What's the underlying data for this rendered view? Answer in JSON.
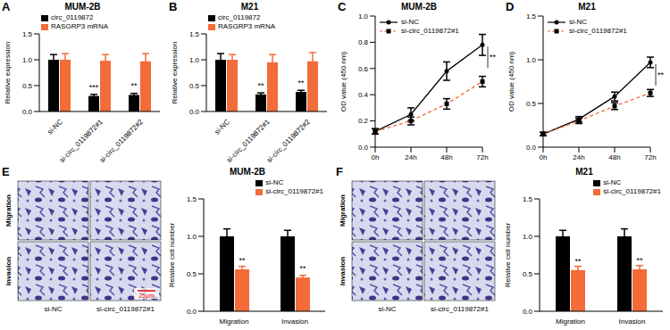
{
  "chart_data": [
    {
      "panel": "A",
      "type": "bar",
      "title": "MUM-2B",
      "y_label": "Relative expression",
      "categories": [
        "si-NC",
        "si-circ_0119872#1",
        "si-circ_0119872#2"
      ],
      "series": [
        {
          "name": "circ_0119872",
          "color": "#000000",
          "values": [
            1.0,
            0.3,
            0.32
          ],
          "errors": [
            0.1,
            0.03,
            0.03
          ],
          "significance": [
            null,
            "***",
            "**"
          ]
        },
        {
          "name": "RASGRP3 mRNA",
          "color": "#f26b38",
          "values": [
            1.0,
            0.98,
            0.97
          ],
          "errors": [
            0.12,
            0.12,
            0.15
          ]
        }
      ],
      "ylim": [
        0,
        1.5
      ],
      "yticks": [
        {
          "value": 0,
          "label": "0.0"
        },
        0.5,
        {
          "value": 1,
          "label": "1.0"
        },
        1.5
      ],
      "legend": "top-left"
    },
    {
      "panel": "B",
      "type": "bar",
      "title": "M21",
      "y_label": "Relative expression",
      "categories": [
        "si-NC",
        "si-circ_0119872#1",
        "si-circ_0119872#2"
      ],
      "series": [
        {
          "name": "circ_0119872",
          "color": "#000000",
          "values": [
            1.0,
            0.33,
            0.38
          ],
          "errors": [
            0.12,
            0.03,
            0.03
          ],
          "significance": [
            null,
            "**",
            "**"
          ]
        },
        {
          "name": "RASGRP3 mRNA",
          "color": "#f26b38",
          "values": [
            1.0,
            0.95,
            0.97
          ],
          "errors": [
            0.1,
            0.15,
            0.17
          ]
        }
      ],
      "ylim": [
        0,
        1.5
      ],
      "yticks": [
        {
          "value": 0,
          "label": "0.0"
        },
        0.5,
        {
          "value": 1,
          "label": "1.0"
        },
        1.5
      ],
      "legend": "top-left"
    },
    {
      "panel": "C",
      "type": "line",
      "title": "MUM-2B",
      "y_label": "OD value (450 nm)",
      "categories": [
        "0h",
        "24h",
        "48h",
        "72h"
      ],
      "series": [
        {
          "name": "si-NC",
          "color": "#000000",
          "marker": "circle",
          "line_style": "solid",
          "values": [
            0.12,
            0.25,
            0.58,
            0.78
          ],
          "errors": [
            0.02,
            0.05,
            0.07,
            0.08
          ],
          "significance": [
            null,
            null,
            null,
            "**"
          ]
        },
        {
          "name": "si-circ_0119872#1",
          "color": "#f26b38",
          "marker": "square",
          "line_style": "dashed",
          "values": [
            0.12,
            0.2,
            0.33,
            0.5
          ],
          "errors": [
            0.02,
            0.03,
            0.04,
            0.04
          ]
        }
      ],
      "ylim": [
        0,
        1.0
      ],
      "yticks": [
        {
          "value": 0,
          "label": "0.0"
        },
        0.2,
        0.4,
        0.6,
        0.8,
        {
          "value": 1,
          "label": "1.0"
        }
      ],
      "legend": "top-left"
    },
    {
      "panel": "D",
      "type": "line",
      "title": "M21",
      "y_label": "OD value (450 nm)",
      "categories": [
        "0h",
        "24h",
        "48h",
        "72h"
      ],
      "series": [
        {
          "name": "si-NC",
          "color": "#000000",
          "marker": "circle",
          "line_style": "solid",
          "values": [
            0.15,
            0.32,
            0.58,
            0.97
          ],
          "errors": [
            0.02,
            0.03,
            0.05,
            0.06
          ],
          "significance": [
            null,
            null,
            null,
            "**"
          ]
        },
        {
          "name": "si-circ_0119872#1",
          "color": "#f26b38",
          "marker": "square",
          "line_style": "dashed",
          "values": [
            0.15,
            0.3,
            0.47,
            0.62
          ],
          "errors": [
            0.02,
            0.03,
            0.04,
            0.04
          ]
        }
      ],
      "ylim": [
        0,
        1.5
      ],
      "yticks": [
        {
          "value": 0,
          "label": "0.0"
        },
        0.5,
        {
          "value": 1,
          "label": "1.0"
        },
        1.5
      ],
      "legend": "top-left"
    },
    {
      "type": "bar",
      "title": "MUM-2B",
      "y_label": "Relative cell number",
      "categories": [
        "Migration",
        "Invasion"
      ],
      "series": [
        {
          "name": "si-NC",
          "color": "#000000",
          "values": [
            1.0,
            1.0
          ],
          "errors": [
            0.1,
            0.08
          ]
        },
        {
          "name": "si-circ_0119872#1",
          "color": "#f26b38",
          "values": [
            0.56,
            0.45
          ],
          "errors": [
            0.04,
            0.03
          ],
          "significance": [
            "**",
            "**"
          ]
        }
      ],
      "ylim": [
        0,
        1.5
      ],
      "yticks": [
        {
          "value": 0,
          "label": "0.0"
        },
        0.5,
        {
          "value": 1,
          "label": "1.0"
        },
        1.5
      ],
      "legend": "top-right"
    },
    {
      "type": "bar",
      "title": "M21",
      "y_label": "Relative cell number",
      "categories": [
        "Migration",
        "Invasion"
      ],
      "series": [
        {
          "name": "si-NC",
          "color": "#000000",
          "values": [
            1.0,
            1.0
          ],
          "errors": [
            0.08,
            0.1
          ]
        },
        {
          "name": "si-circ_0119872#1",
          "color": "#f26b38",
          "values": [
            0.55,
            0.56
          ],
          "errors": [
            0.05,
            0.05
          ],
          "significance": [
            "**",
            "**"
          ]
        }
      ],
      "ylim": [
        0,
        1.5
      ],
      "yticks": [
        {
          "value": 0,
          "label": "0.0"
        },
        0.5,
        {
          "value": 1,
          "label": "1.0"
        },
        1.5
      ],
      "legend": "top-right"
    }
  ],
  "micrographs": [
    {
      "panel": "E",
      "row_labels": [
        "Migration",
        "Invasion"
      ],
      "column_labels": [
        "si-NC",
        "si-circ_0119872#1"
      ],
      "scale_bar": "25μm"
    },
    {
      "panel": "F",
      "row_labels": [
        "Migration",
        "Invasion"
      ],
      "column_labels": [
        "si-NC",
        "si-circ_0119872#1"
      ]
    }
  ]
}
